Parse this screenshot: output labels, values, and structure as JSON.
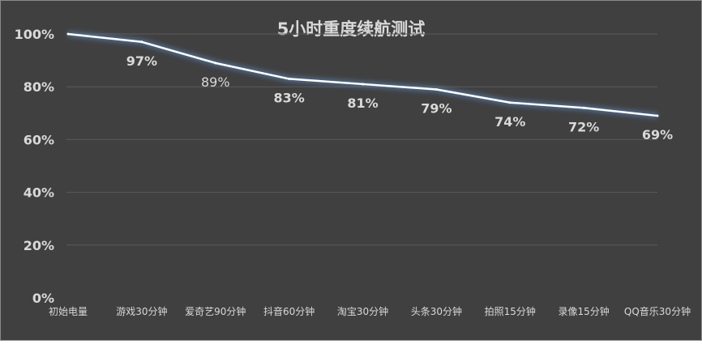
{
  "chart_data": {
    "type": "line",
    "title": "5小时重度续航测试",
    "categories": [
      "初始电量",
      "游戏30分钟",
      "爱奇艺90分钟",
      "抖音60分钟",
      "淘宝30分钟",
      "头条30分钟",
      "拍照15分钟",
      "录像15分钟",
      "QQ音乐30分钟"
    ],
    "values": [
      100,
      97,
      89,
      83,
      81,
      79,
      74,
      72,
      69
    ],
    "data_labels": [
      "",
      "97%",
      "89%",
      "83%",
      "81%",
      "79%",
      "74%",
      "72%",
      "69%"
    ],
    "yticks": [
      "0%",
      "20%",
      "40%",
      "60%",
      "80%",
      "100%"
    ],
    "ytick_values": [
      0,
      20,
      40,
      60,
      80,
      100
    ],
    "ylim": [
      0,
      100
    ],
    "xlabel": "",
    "ylabel": "",
    "grid": true,
    "legend": "none",
    "colors": {
      "background": "#404040",
      "line": "#ffffff",
      "glow": "#5b8fd0",
      "grid": "#5a5a5a",
      "text": "#d9d9d9"
    }
  }
}
